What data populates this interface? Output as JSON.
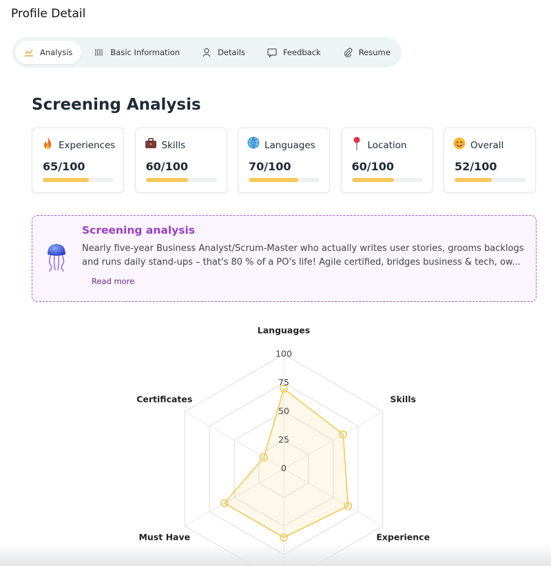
{
  "header": {
    "title": "Profile Detail"
  },
  "tabs": [
    {
      "label": "Analysis",
      "active": true
    },
    {
      "label": "Basic Information",
      "active": false
    },
    {
      "label": "Details",
      "active": false
    },
    {
      "label": "Feedback",
      "active": false
    },
    {
      "label": "Resume",
      "active": false
    }
  ],
  "section_title": "Screening Analysis",
  "cards": {
    "scale": [
      0,
      100
    ],
    "items": [
      {
        "label": "Experiences",
        "value": 65,
        "value_label": "65/100"
      },
      {
        "label": "Skills",
        "value": 60,
        "value_label": "60/100"
      },
      {
        "label": "Languages",
        "value": 70,
        "value_label": "70/100"
      },
      {
        "label": "Location",
        "value": 60,
        "value_label": "60/100"
      },
      {
        "label": "Overall",
        "value": 52,
        "value_label": "52/100"
      }
    ]
  },
  "summary": {
    "title": "Screening analysis",
    "text": "Nearly five-year Business Analyst/Scrum-Master who actually writes user stories, grooms backlogs and runs daily stand-ups – that's 80 % of a PO's life! Agile certified, bridges business & tech, ow...",
    "link": "Read more"
  },
  "chart_data": {
    "type": "radar",
    "categories": [
      "Languages",
      "Skills",
      "Experience",
      null,
      "Must Have",
      "Certificates"
    ],
    "series": [
      {
        "color": "#f2c54b",
        "values": [
          70,
          60,
          65,
          60,
          60,
          20
        ]
      }
    ],
    "ylim": [
      0,
      100
    ],
    "yticks": [
      0,
      25,
      50,
      75,
      100
    ],
    "grid": true
  }
}
